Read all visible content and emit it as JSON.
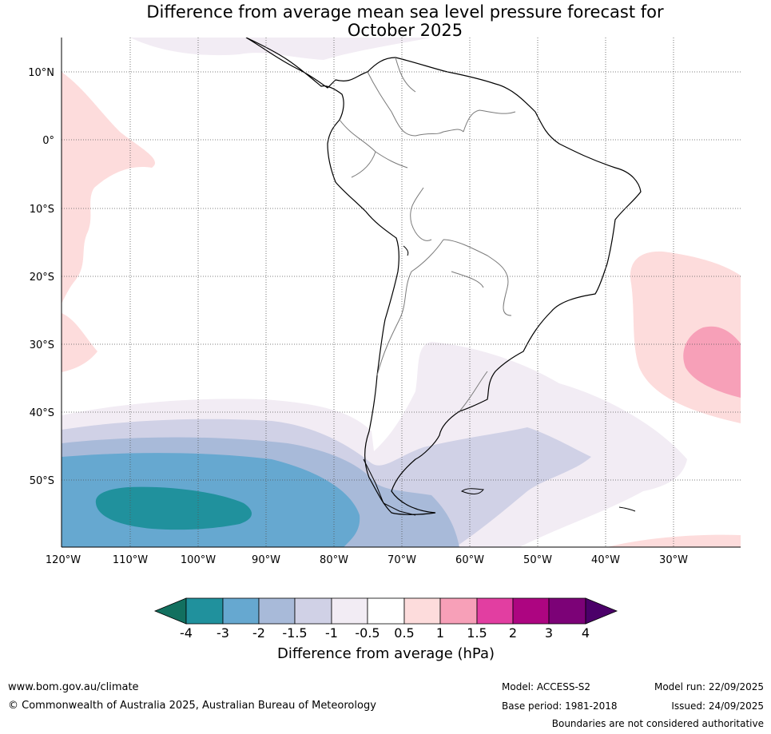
{
  "title": {
    "line1": "Difference from average mean sea level pressure forecast for",
    "line2": "October 2025"
  },
  "map": {
    "lat_labels": [
      "10°N",
      "0°",
      "10°S",
      "20°S",
      "30°S",
      "40°S",
      "50°S"
    ],
    "lon_labels": [
      "120°W",
      "110°W",
      "100°W",
      "90°W",
      "80°W",
      "70°W",
      "60°W",
      "50°W",
      "40°W",
      "30°W"
    ],
    "colors": {
      "minus4": "#12705f",
      "minus3": "#20919d",
      "minus2": "#66a8d0",
      "minus15": "#a8bad9",
      "minus1": "#d0d1e6",
      "minus05": "#f2ecf4",
      "neutral": "#ffffff",
      "plus05": "#fddcdc",
      "plus1": "#f7a0b8",
      "plus15": "#e23ea1",
      "plus2": "#ad0581",
      "plus3": "#7c0277",
      "plus4": "#4b0069"
    }
  },
  "colorbar": {
    "ticks": [
      "-4",
      "-3",
      "-2",
      "-1.5",
      "-1",
      "-0.5",
      "0.5",
      "1",
      "1.5",
      "2",
      "3",
      "4"
    ],
    "title": "Difference from average (hPa)"
  },
  "footer": {
    "website": "www.bom.gov.au/climate",
    "copyright": "© Commonwealth of Australia 2025, Australian Bureau of Meteorology",
    "model": "Model: ACCESS-S2",
    "base_period": "Base period: 1981-2018",
    "model_run": "Model run: 22/09/2025",
    "issued": "Issued: 24/09/2025",
    "disclaimer": "Boundaries are not considered authoritative"
  }
}
